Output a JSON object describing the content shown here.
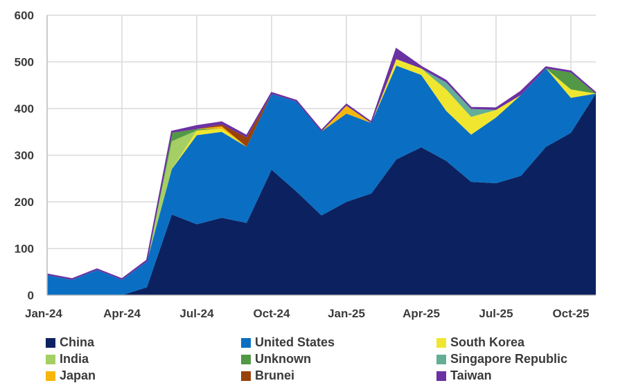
{
  "chart_data": {
    "type": "area",
    "stacked": true,
    "title": "",
    "xlabel": "",
    "ylabel": "",
    "ylim": [
      0,
      600
    ],
    "yticks": [
      0,
      100,
      200,
      300,
      400,
      500,
      600
    ],
    "grid": true,
    "legend_position": "bottom",
    "categories": [
      "Jan-24",
      "Feb-24",
      "Mar-24",
      "Apr-24",
      "May-24",
      "Jun-24",
      "Jul-24",
      "Aug-24",
      "Sep-24",
      "Oct-24",
      "Nov-24",
      "Dec-24",
      "Jan-25",
      "Feb-25",
      "Mar-25",
      "Apr-25",
      "May-25",
      "Jun-25",
      "Jul-25",
      "Aug-25",
      "Sep-25",
      "Oct-25",
      "Nov-25"
    ],
    "x_tick_labels": [
      "Jan-24",
      "Apr-24",
      "Jul-24",
      "Oct-24",
      "Jan-25",
      "Apr-25",
      "Jul-25",
      "Oct-25"
    ],
    "series": [
      {
        "name": "China",
        "color": "#0c2260",
        "values": [
          0,
          0,
          0,
          0,
          17,
          173,
          152,
          166,
          155,
          269,
          222,
          171,
          200,
          218,
          291,
          317,
          288,
          243,
          240,
          256,
          318,
          348,
          432
        ]
      },
      {
        "name": "United States",
        "color": "#0a6fc2",
        "values": [
          43,
          33,
          54,
          33,
          55,
          97,
          191,
          184,
          163,
          162,
          193,
          180,
          189,
          151,
          201,
          155,
          107,
          101,
          141,
          173,
          168,
          75,
          0
        ]
      },
      {
        "name": "South Korea",
        "color": "#f0e630",
        "values": [
          0,
          0,
          0,
          0,
          0,
          0,
          10,
          7,
          0,
          0,
          0,
          0,
          0,
          0,
          14,
          14,
          46,
          38,
          16,
          0,
          0,
          18,
          0
        ]
      },
      {
        "name": "India",
        "color": "#a5cf64",
        "values": [
          0,
          0,
          0,
          0,
          0,
          60,
          0,
          0,
          0,
          0,
          0,
          0,
          0,
          0,
          0,
          0,
          0,
          0,
          0,
          0,
          0,
          0,
          0
        ]
      },
      {
        "name": "Unknown",
        "color": "#529846",
        "values": [
          0,
          0,
          0,
          0,
          0,
          18,
          3,
          0,
          0,
          0,
          0,
          0,
          0,
          0,
          0,
          0,
          0,
          0,
          0,
          0,
          0,
          36,
          0
        ]
      },
      {
        "name": "Singapore Republic",
        "color": "#63ae96",
        "values": [
          0,
          0,
          0,
          0,
          0,
          0,
          0,
          0,
          0,
          0,
          0,
          0,
          0,
          0,
          0,
          0,
          15,
          17,
          0,
          0,
          0,
          0,
          0
        ]
      },
      {
        "name": "Japan",
        "color": "#f6b70c",
        "values": [
          0,
          0,
          0,
          0,
          0,
          0,
          0,
          5,
          0,
          0,
          0,
          0,
          17,
          0,
          0,
          0,
          0,
          0,
          0,
          0,
          0,
          0,
          0
        ]
      },
      {
        "name": "Brunei",
        "color": "#984109",
        "values": [
          0,
          0,
          0,
          0,
          0,
          0,
          0,
          4,
          20,
          0,
          0,
          0,
          0,
          0,
          0,
          0,
          0,
          0,
          0,
          0,
          0,
          0,
          0
        ]
      },
      {
        "name": "Taiwan",
        "color": "#6b32a2",
        "values": [
          2,
          2,
          2,
          2,
          3,
          3,
          7,
          5,
          4,
          3,
          2,
          2,
          3,
          2,
          22,
          4,
          4,
          3,
          4,
          8,
          3,
          3,
          2
        ]
      }
    ]
  },
  "legend": {
    "items": [
      {
        "label": "China",
        "color": "#0c2260"
      },
      {
        "label": "United States",
        "color": "#0a6fc2"
      },
      {
        "label": "South Korea",
        "color": "#f0e630"
      },
      {
        "label": "India",
        "color": "#a5cf64"
      },
      {
        "label": "Unknown",
        "color": "#529846"
      },
      {
        "label": "Singapore Republic",
        "color": "#63ae96"
      },
      {
        "label": "Japan",
        "color": "#f6b70c"
      },
      {
        "label": "Brunei",
        "color": "#984109"
      },
      {
        "label": "Taiwan",
        "color": "#6b32a2"
      }
    ]
  }
}
